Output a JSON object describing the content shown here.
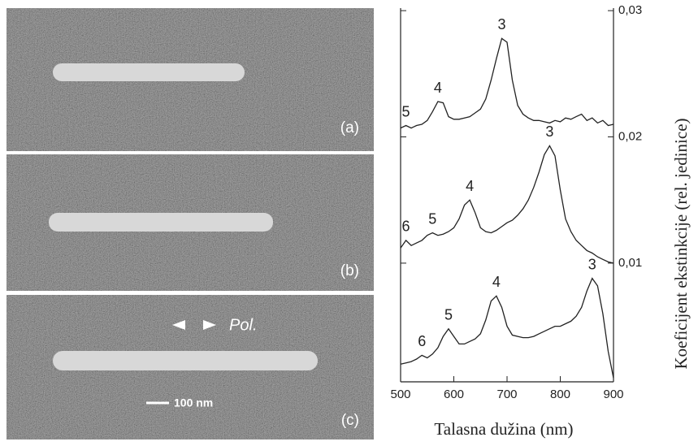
{
  "images": {
    "panels": [
      {
        "label": "(a)"
      },
      {
        "label": "(b)"
      },
      {
        "label": "(c)"
      }
    ],
    "polarization": "Pol.",
    "scale_bar": "100 nm"
  },
  "chart_data": {
    "type": "line",
    "xlabel": "Talasna dužina (nm)",
    "ylabel": "Koeficijent ekstinkcije (rel. jedinice)",
    "x": [
      500,
      510,
      520,
      530,
      540,
      550,
      560,
      570,
      580,
      590,
      600,
      610,
      620,
      630,
      640,
      650,
      660,
      670,
      680,
      690,
      700,
      710,
      720,
      730,
      740,
      750,
      760,
      770,
      780,
      790,
      800,
      810,
      820,
      830,
      840,
      850,
      860,
      870,
      880,
      890,
      900
    ],
    "series": [
      {
        "color": "#222222",
        "values": [
          0.0207,
          0.0209,
          0.0207,
          0.0209,
          0.021,
          0.0213,
          0.022,
          0.0228,
          0.0227,
          0.0216,
          0.0214,
          0.0214,
          0.0215,
          0.0216,
          0.0219,
          0.0222,
          0.023,
          0.0245,
          0.0262,
          0.0278,
          0.0275,
          0.0245,
          0.0225,
          0.0218,
          0.0215,
          0.0213,
          0.0213,
          0.0212,
          0.0211,
          0.0213,
          0.0212,
          0.0215,
          0.0214,
          0.0216,
          0.0218,
          0.0213,
          0.0215,
          0.0211,
          0.0213,
          0.0209,
          0.021
        ],
        "annotations": [
          {
            "text": "5",
            "x": 510
          },
          {
            "text": "4",
            "x": 570
          },
          {
            "text": "3",
            "x": 690
          }
        ]
      },
      {
        "color": "#222222",
        "values": [
          0.0112,
          0.0118,
          0.0114,
          0.0116,
          0.0118,
          0.0122,
          0.0124,
          0.0122,
          0.0123,
          0.0125,
          0.0128,
          0.0135,
          0.0146,
          0.015,
          0.014,
          0.0128,
          0.0125,
          0.0124,
          0.0126,
          0.0129,
          0.0132,
          0.0134,
          0.0138,
          0.0143,
          0.015,
          0.016,
          0.0172,
          0.0186,
          0.0193,
          0.0185,
          0.0158,
          0.0135,
          0.0125,
          0.0118,
          0.0114,
          0.011,
          0.0108,
          0.0105,
          0.0103,
          0.0101,
          0.01
        ],
        "annotations": [
          {
            "text": "6",
            "x": 510
          },
          {
            "text": "5",
            "x": 560
          },
          {
            "text": "4",
            "x": 630
          },
          {
            "text": "3",
            "x": 780
          }
        ]
      },
      {
        "color": "#222222",
        "values": [
          0.002,
          0.0021,
          0.0022,
          0.0024,
          0.0027,
          0.0025,
          0.0028,
          0.0033,
          0.0042,
          0.0048,
          0.0042,
          0.0036,
          0.0036,
          0.0038,
          0.004,
          0.0044,
          0.0055,
          0.007,
          0.0074,
          0.0065,
          0.005,
          0.0043,
          0.0042,
          0.0041,
          0.0041,
          0.0042,
          0.0044,
          0.0046,
          0.0048,
          0.005,
          0.005,
          0.0052,
          0.0054,
          0.0058,
          0.0065,
          0.0078,
          0.0088,
          0.0082,
          0.006,
          0.003,
          0.0009
        ],
        "annotations": [
          {
            "text": "6",
            "x": 540
          },
          {
            "text": "5",
            "x": 590
          },
          {
            "text": "4",
            "x": 680
          },
          {
            "text": "3",
            "x": 860
          }
        ]
      }
    ],
    "xlim": [
      500,
      900
    ],
    "xticks": [
      500,
      600,
      700,
      800,
      900
    ],
    "ylim": [
      0.0006,
      0.0302
    ],
    "yticks": [
      {
        "value": 0.01,
        "label": "0,01"
      },
      {
        "value": 0.02,
        "label": "0,02"
      },
      {
        "value": 0.03,
        "label": "0,03"
      }
    ],
    "y_axis_side": "right",
    "grid": false
  }
}
